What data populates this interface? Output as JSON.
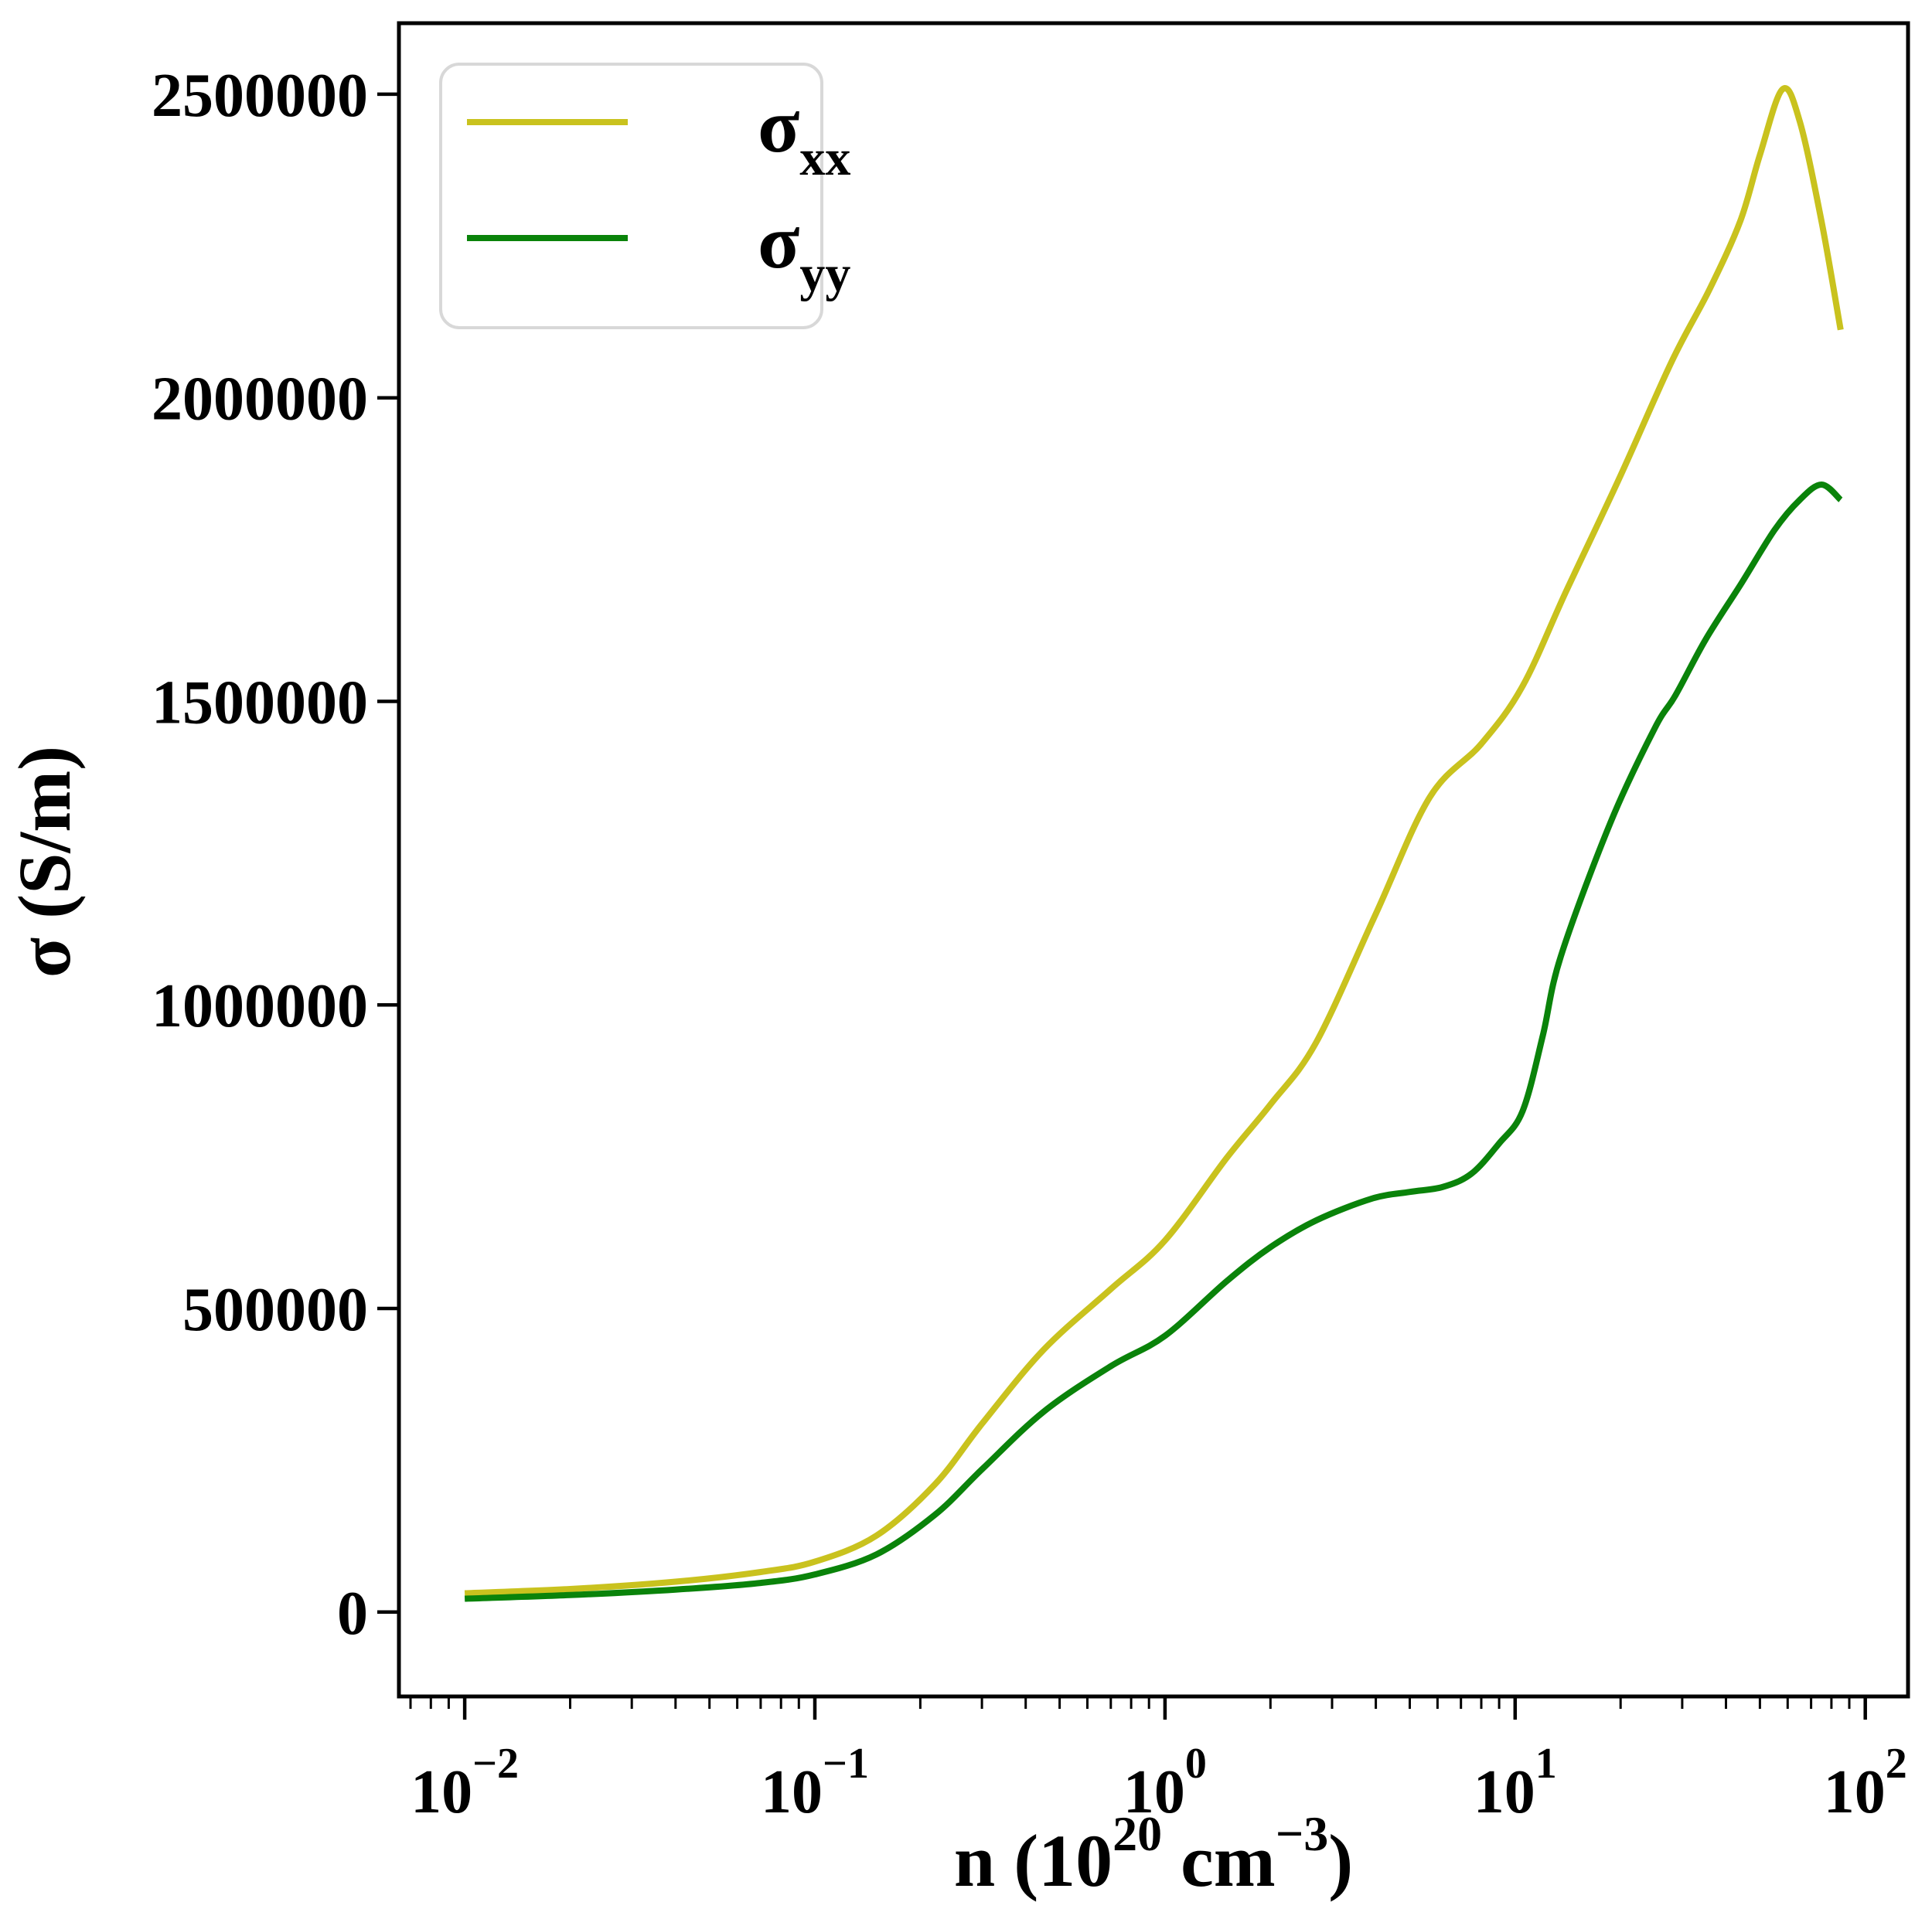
{
  "figure": {
    "background": "#ffffff",
    "spine_color": "#000000"
  },
  "chart_data": {
    "type": "line",
    "title": "",
    "ylabel": "σ (S/m)",
    "xlabel_parts": {
      "prefix": "n (10",
      "sup1": "20",
      "mid": " cm",
      "sup2": "−3",
      "suffix": ")"
    },
    "x_scale": "log",
    "xlim_log10": [
      -2.188,
      2.122
    ],
    "ylim": [
      -139000,
      2617000
    ],
    "grid": false,
    "x_major_ticks": [
      {
        "exponent": "−2",
        "value": 0.01
      },
      {
        "exponent": "−1",
        "value": 0.1
      },
      {
        "exponent": "0",
        "value": 1
      },
      {
        "exponent": "1",
        "value": 10
      },
      {
        "exponent": "2",
        "value": 100
      }
    ],
    "x_tick_base": "10",
    "y_ticks": [
      {
        "value": 0,
        "label": "0"
      },
      {
        "value": 500000,
        "label": "500000"
      },
      {
        "value": 1000000,
        "label": "1000000"
      },
      {
        "value": 1500000,
        "label": "1500000"
      },
      {
        "value": 2000000,
        "label": "2000000"
      },
      {
        "value": 2500000,
        "label": "2500000"
      }
    ],
    "legend": {
      "position": "upper-left",
      "border_color": "#d8d8d8",
      "fill_color": "#ffffff",
      "entries": [
        {
          "label_base": "σ",
          "label_sub": "xx",
          "color": "#c9c21e"
        },
        {
          "label_base": "σ",
          "label_sub": "yy",
          "color": "#0a830a"
        }
      ]
    },
    "series": [
      {
        "name": "sigma_xx",
        "color": "#c9c21e",
        "points": [
          [
            0.01,
            31000
          ],
          [
            0.02,
            38000
          ],
          [
            0.04,
            50000
          ],
          [
            0.07,
            66000
          ],
          [
            0.1,
            83000
          ],
          [
            0.15,
            126000
          ],
          [
            0.22,
            210000
          ],
          [
            0.3,
            310000
          ],
          [
            0.45,
            432000
          ],
          [
            0.7,
            532000
          ],
          [
            1.0,
            612000
          ],
          [
            1.5,
            748000
          ],
          [
            2.0,
            836000
          ],
          [
            2.7,
            938000
          ],
          [
            4.0,
            1150000
          ],
          [
            5.7,
            1342000
          ],
          [
            8.0,
            1430000
          ],
          [
            10.5,
            1525000
          ],
          [
            14,
            1682000
          ],
          [
            20,
            1872000
          ],
          [
            28,
            2060000
          ],
          [
            36,
            2180000
          ],
          [
            44,
            2292000
          ],
          [
            50,
            2400000
          ],
          [
            58,
            2508000
          ],
          [
            65,
            2455000
          ],
          [
            75,
            2290000
          ],
          [
            85,
            2112000
          ]
        ]
      },
      {
        "name": "sigma_yy",
        "color": "#0a830a",
        "points": [
          [
            0.01,
            22000
          ],
          [
            0.02,
            28000
          ],
          [
            0.04,
            37000
          ],
          [
            0.07,
            48000
          ],
          [
            0.1,
            62000
          ],
          [
            0.15,
            95000
          ],
          [
            0.22,
            160000
          ],
          [
            0.3,
            235000
          ],
          [
            0.45,
            330000
          ],
          [
            0.7,
            405000
          ],
          [
            1.0,
            455000
          ],
          [
            1.5,
            545000
          ],
          [
            2.0,
            601000
          ],
          [
            2.7,
            645000
          ],
          [
            3.9,
            681000
          ],
          [
            5.0,
            692000
          ],
          [
            6.2,
            700000
          ],
          [
            7.5,
            722000
          ],
          [
            9.0,
            772000
          ],
          [
            10.5,
            825000
          ],
          [
            12.0,
            950000
          ],
          [
            13.5,
            1080000
          ],
          [
            18.7,
            1300000
          ],
          [
            25,
            1455000
          ],
          [
            28.7,
            1510000
          ],
          [
            35,
            1602000
          ],
          [
            44,
            1692000
          ],
          [
            55,
            1782000
          ],
          [
            65,
            1832000
          ],
          [
            75,
            1857000
          ],
          [
            85,
            1832000
          ]
        ]
      }
    ]
  }
}
